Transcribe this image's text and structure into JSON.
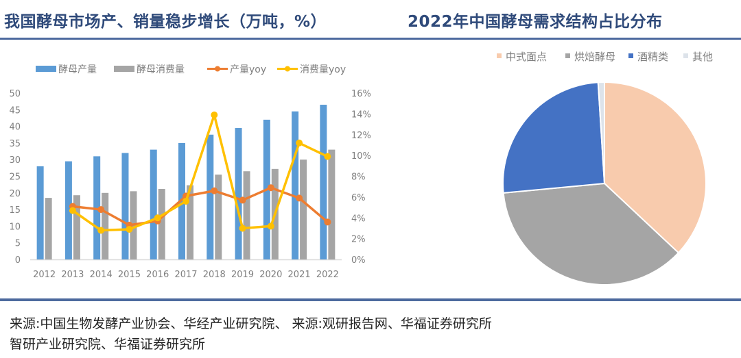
{
  "titles": {
    "left": "我国酵母市场产、销量稳步增长（万吨，%）",
    "right": "2022年中国酵母需求结构占比分布"
  },
  "footer": {
    "line1": "来源:中国生物发酵产业协会、华经产业研究院、 来源:观研报告网、华福证券研究所",
    "line2": "智研产业研究院、华福证券研究所"
  },
  "colors": {
    "production": "#5b9bd5",
    "consumption": "#a5a5a5",
    "production_yoy": "#ed7d31",
    "consumption_yoy": "#ffc000",
    "pie_chinese_pastry": "#f8cbad",
    "pie_baking": "#a5a5a5",
    "pie_alcohol": "#4472c4",
    "pie_other": "#dde3ea",
    "title": "#2f4a7a",
    "rule": "#4d6a9e"
  },
  "chart_data": [
    {
      "type": "bar",
      "title": "我国酵母市场产、销量稳步增长（万吨，%）",
      "categories": [
        "2012",
        "2013",
        "2014",
        "2015",
        "2016",
        "2017",
        "2018",
        "2019",
        "2020",
        "2021",
        "2022"
      ],
      "series": [
        {
          "name": "酵母产量",
          "kind": "bar",
          "axis": "left",
          "values": [
            28,
            29.5,
            31,
            32,
            33,
            35,
            37.5,
            39.5,
            42,
            44.5,
            46.5
          ]
        },
        {
          "name": "酵母消费量",
          "kind": "bar",
          "axis": "left",
          "values": [
            18.5,
            19.3,
            20,
            20.5,
            21.2,
            22.3,
            25.5,
            26.5,
            27.2,
            30,
            33
          ]
        },
        {
          "name": "产量yoy",
          "kind": "line",
          "axis": "right",
          "values": [
            null,
            5.1,
            4.8,
            3.3,
            3.7,
            6.1,
            6.6,
            5.7,
            6.9,
            5.9,
            3.6
          ]
        },
        {
          "name": "消费量yoy",
          "kind": "line",
          "axis": "right",
          "values": [
            null,
            4.7,
            2.8,
            2.9,
            4.0,
            5.6,
            13.9,
            3.0,
            3.2,
            11.2,
            9.9
          ]
        }
      ],
      "ylim": [
        0,
        50
      ],
      "y2lim": [
        0,
        16
      ],
      "yticks": [
        "0",
        "5",
        "10",
        "15",
        "20",
        "25",
        "30",
        "35",
        "40",
        "45",
        "50"
      ],
      "y2ticks": [
        "0%",
        "2%",
        "4%",
        "6%",
        "8%",
        "10%",
        "12%",
        "14%",
        "16%"
      ],
      "legend_position": "top",
      "grid": false
    },
    {
      "type": "pie",
      "title": "2022年中国酵母需求结构占比分布",
      "labels": [
        "中式面点",
        "烘焙酵母",
        "酒精类",
        "其他"
      ],
      "values": [
        37,
        36.5,
        25.5,
        1
      ],
      "legend_position": "top"
    }
  ]
}
